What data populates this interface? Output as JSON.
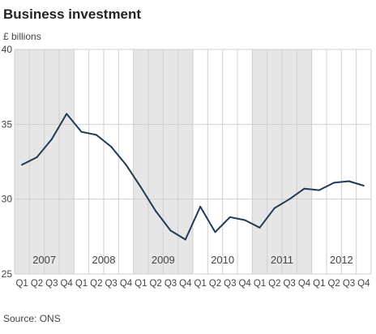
{
  "title": "Business investment",
  "unit_label": "£ billions",
  "source": "Source: ONS",
  "chart_data": {
    "type": "line",
    "categories": [
      "Q1",
      "Q2",
      "Q3",
      "Q4",
      "Q1",
      "Q2",
      "Q3",
      "Q4",
      "Q1",
      "Q2",
      "Q3",
      "Q4",
      "Q1",
      "Q2",
      "Q3",
      "Q4",
      "Q1",
      "Q2",
      "Q3",
      "Q4",
      "Q1",
      "Q2",
      "Q3",
      "Q4"
    ],
    "years": [
      "2007",
      "2008",
      "2009",
      "2010",
      "2011",
      "2012"
    ],
    "shaded_years": [
      "2007",
      "2009",
      "2011"
    ],
    "values": [
      32.3,
      32.8,
      34.0,
      35.7,
      34.5,
      34.3,
      33.5,
      32.3,
      30.8,
      29.2,
      27.9,
      27.3,
      29.5,
      27.8,
      28.8,
      28.6,
      28.1,
      29.4,
      30.0,
      30.7,
      30.6,
      31.1,
      31.2,
      30.9
    ],
    "yticks": [
      25,
      30,
      35,
      40
    ],
    "ylim": [
      25,
      40
    ],
    "grid": true,
    "colors": {
      "line": "#1f3a57",
      "shade": "#e6e6e6",
      "grid": "#cfcfcf"
    }
  }
}
